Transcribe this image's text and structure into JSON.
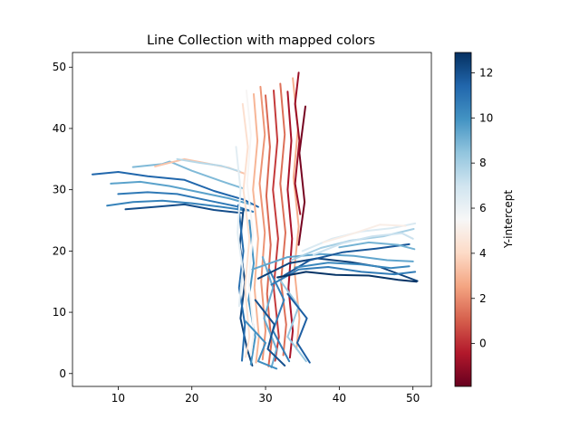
{
  "chart_data": {
    "type": "line",
    "title": "Line Collection with mapped colors",
    "xlabel": "",
    "ylabel": "",
    "xlim": [
      3.8,
      52.5
    ],
    "ylim": [
      -2.1,
      52.4
    ],
    "xticks": [
      10,
      20,
      30,
      40,
      50
    ],
    "yticks": [
      0,
      10,
      20,
      30,
      40,
      50
    ],
    "colorbar": {
      "label": "Y-intercept",
      "range": [
        -1.9,
        12.9
      ],
      "ticks": [
        0,
        2,
        4,
        6,
        8,
        10,
        12
      ],
      "colormap": "RdBu",
      "stops": [
        "#67001f",
        "#b2182b",
        "#d6604d",
        "#f4a582",
        "#fddbc7",
        "#f7f7f7",
        "#d1e5f0",
        "#92c5de",
        "#4393c3",
        "#2166ac",
        "#053061"
      ]
    },
    "series": [
      {
        "values": [
          [
            6.5,
            32.5
          ],
          [
            10,
            32.9
          ],
          [
            14,
            32.2
          ],
          [
            19,
            31.6
          ],
          [
            23,
            29.8
          ],
          [
            27,
            28.4
          ],
          [
            29,
            27.2
          ]
        ],
        "color_value": 11.4
      },
      {
        "values": [
          [
            8.5,
            27.4
          ],
          [
            12,
            28.0
          ],
          [
            16,
            28.2
          ],
          [
            20,
            27.8
          ],
          [
            24,
            27.2
          ],
          [
            27.5,
            26.6
          ]
        ],
        "color_value": 10.5
      },
      {
        "values": [
          [
            9,
            31.0
          ],
          [
            13,
            31.3
          ],
          [
            17,
            30.6
          ],
          [
            21,
            29.6
          ],
          [
            25,
            28.6
          ],
          [
            28,
            27.6
          ]
        ],
        "color_value": 9.5
      },
      {
        "values": [
          [
            10,
            29.3
          ],
          [
            14,
            29.6
          ],
          [
            18,
            29.3
          ],
          [
            22,
            28.3
          ],
          [
            26,
            27.3
          ],
          [
            28.3,
            26.4
          ]
        ],
        "color_value": 10.8
      },
      {
        "values": [
          [
            12,
            33.7
          ],
          [
            16,
            34.2
          ],
          [
            17,
            34.6
          ],
          [
            20,
            33.1
          ],
          [
            24,
            31.4
          ],
          [
            27,
            30.2
          ]
        ],
        "color_value": 8.8
      },
      {
        "values": [
          [
            15,
            33.8
          ],
          [
            19,
            35.0
          ],
          [
            22,
            34.3
          ],
          [
            25,
            33.6
          ],
          [
            27.2,
            32.6
          ]
        ],
        "color_value": 3.4
      },
      {
        "values": [
          [
            18,
            35.0
          ],
          [
            21,
            34.4
          ],
          [
            24,
            33.9
          ],
          [
            26.5,
            33.0
          ]
        ],
        "color_value": 7.6
      },
      {
        "values": [
          [
            11,
            26.8
          ],
          [
            15,
            27.2
          ],
          [
            19,
            27.6
          ],
          [
            23,
            26.7
          ],
          [
            26.8,
            26.2
          ]
        ],
        "color_value": 12.1
      },
      {
        "values": [
          [
            27,
            26.8
          ],
          [
            26.5,
            21.0
          ],
          [
            27.2,
            15.0
          ],
          [
            26.6,
            9.0
          ],
          [
            27.5,
            4.0
          ],
          [
            28.2,
            1.3
          ]
        ],
        "color_value": 12.3
      },
      {
        "values": [
          [
            26.3,
            27.5
          ],
          [
            27.0,
            20.0
          ],
          [
            26.4,
            14.0
          ],
          [
            27.2,
            8.0
          ],
          [
            26.8,
            2.1
          ]
        ],
        "color_value": 11.2
      },
      {
        "values": [
          [
            27.8,
            25.0
          ],
          [
            28.4,
            18.0
          ],
          [
            27.7,
            12.0
          ],
          [
            28.6,
            6.0
          ],
          [
            28.0,
            1.5
          ]
        ],
        "color_value": 9.9
      },
      {
        "values": [
          [
            26.9,
            44.0
          ],
          [
            27.6,
            37.0
          ],
          [
            27.0,
            30.0
          ],
          [
            27.8,
            22.0
          ],
          [
            27.2,
            14.0
          ],
          [
            27.8,
            6.0
          ],
          [
            27.3,
            2.7
          ]
        ],
        "color_value": 4.3
      },
      {
        "values": [
          [
            27.4,
            46.2
          ],
          [
            28.0,
            39.0
          ],
          [
            27.5,
            31.0
          ],
          [
            28.3,
            23.0
          ],
          [
            27.7,
            15.0
          ],
          [
            28.4,
            7.0
          ],
          [
            28.0,
            3.0
          ]
        ],
        "color_value": 5.4
      },
      {
        "values": [
          [
            28.4,
            45.6
          ],
          [
            28.9,
            38.0
          ],
          [
            28.3,
            30.0
          ],
          [
            29.0,
            22.0
          ],
          [
            28.5,
            14.0
          ],
          [
            29.1,
            6.0
          ],
          [
            28.7,
            1.8
          ]
        ],
        "color_value": 3.0
      },
      {
        "values": [
          [
            29.3,
            46.8
          ],
          [
            29.9,
            39.0
          ],
          [
            29.2,
            31.0
          ],
          [
            29.9,
            23.0
          ],
          [
            29.4,
            15.0
          ],
          [
            30.0,
            7.0
          ],
          [
            29.6,
            2.3
          ]
        ],
        "color_value": 2.2
      },
      {
        "values": [
          [
            30.0,
            45.4
          ],
          [
            30.6,
            37.0
          ],
          [
            30.1,
            29.0
          ],
          [
            30.7,
            21.0
          ],
          [
            30.2,
            13.0
          ],
          [
            30.8,
            5.0
          ],
          [
            30.4,
            1.2
          ]
        ],
        "color_value": 1.2
      },
      {
        "values": [
          [
            31.1,
            46.2
          ],
          [
            31.6,
            38.0
          ],
          [
            31.0,
            30.0
          ],
          [
            31.7,
            22.0
          ],
          [
            31.1,
            14.0
          ],
          [
            31.8,
            6.0
          ],
          [
            31.3,
            2.1
          ]
        ],
        "color_value": 0.3
      },
      {
        "values": [
          [
            32.0,
            47.3
          ],
          [
            32.6,
            39.0
          ],
          [
            32.0,
            31.0
          ],
          [
            32.7,
            23.0
          ],
          [
            32.1,
            15.0
          ],
          [
            32.8,
            8.0
          ],
          [
            32.4,
            3.0
          ]
        ],
        "color_value": 1.4
      },
      {
        "values": [
          [
            33.0,
            46.0
          ],
          [
            33.5,
            38.0
          ],
          [
            33.0,
            30.0
          ],
          [
            33.6,
            22.0
          ],
          [
            33.1,
            14.0
          ],
          [
            33.7,
            7.0
          ],
          [
            33.3,
            2.6
          ]
        ],
        "color_value": -0.6
      },
      {
        "values": [
          [
            33.7,
            48.2
          ],
          [
            34.4,
            40.0
          ],
          [
            33.8,
            32.0
          ],
          [
            34.5,
            24.0
          ],
          [
            33.9,
            17.0
          ],
          [
            34.6,
            9.0
          ],
          [
            34.2,
            4.0
          ]
        ],
        "color_value": 2.8
      },
      {
        "values": [
          [
            35.4,
            43.6
          ],
          [
            34.6,
            36.0
          ],
          [
            35.3,
            28.0
          ],
          [
            34.5,
            21.0
          ]
        ],
        "color_value": -1.6
      },
      {
        "values": [
          [
            34.5,
            49.1
          ],
          [
            34.0,
            44.0
          ],
          [
            34.6,
            38.0
          ],
          [
            34.0,
            31.0
          ],
          [
            34.7,
            26.0
          ]
        ],
        "color_value": -0.9
      },
      {
        "values": [
          [
            26.0,
            37.0
          ],
          [
            26.6,
            30.0
          ],
          [
            26.2,
            23.0
          ],
          [
            26.9,
            17.0
          ],
          [
            26.4,
            11.0
          ]
        ],
        "color_value": 6.3
      },
      {
        "values": [
          [
            29.6,
            19.0
          ],
          [
            31.0,
            14.0
          ],
          [
            29.8,
            9.0
          ],
          [
            31.5,
            4.0
          ],
          [
            30.8,
            1.0
          ]
        ],
        "color_value": 9.2
      },
      {
        "values": [
          [
            30.5,
            17.0
          ],
          [
            32.5,
            12.0
          ],
          [
            31.0,
            7.0
          ],
          [
            33.2,
            2.0
          ]
        ],
        "color_value": 10.6
      },
      {
        "values": [
          [
            28.6,
            12.0
          ],
          [
            31.2,
            8.0
          ],
          [
            30.3,
            4.0
          ],
          [
            32.6,
            1.3
          ]
        ],
        "color_value": 12.0
      },
      {
        "values": [
          [
            31.8,
            15.5
          ],
          [
            34.5,
            11.0
          ],
          [
            33.0,
            6.0
          ],
          [
            35.5,
            2.0
          ]
        ],
        "color_value": 8.3
      },
      {
        "values": [
          [
            33.0,
            13.0
          ],
          [
            35.6,
            9.0
          ],
          [
            34.3,
            5.0
          ],
          [
            36.0,
            1.8
          ]
        ],
        "color_value": 11.6
      },
      {
        "values": [
          [
            27.3,
            8.5
          ],
          [
            30.0,
            5.0
          ],
          [
            29.0,
            2.0
          ],
          [
            31.5,
            0.8
          ]
        ],
        "color_value": 10.1
      },
      {
        "values": [
          [
            29.0,
            15.5
          ],
          [
            33.2,
            18.0
          ],
          [
            37.0,
            18.8
          ],
          [
            41.5,
            18.2
          ],
          [
            45.5,
            17.4
          ],
          [
            50.6,
            15.1
          ]
        ],
        "color_value": 12.4
      },
      {
        "values": [
          [
            30.8,
            14.5
          ],
          [
            34.5,
            17.0
          ],
          [
            38.5,
            17.4
          ],
          [
            43.0,
            16.6
          ],
          [
            47.5,
            16.2
          ],
          [
            50.3,
            16.6
          ]
        ],
        "color_value": 10.7
      },
      {
        "values": [
          [
            28.2,
            17.0
          ],
          [
            33.0,
            19.0
          ],
          [
            37.5,
            19.5
          ],
          [
            42.0,
            19.2
          ],
          [
            46.5,
            18.5
          ],
          [
            50.0,
            18.3
          ]
        ],
        "color_value": 9.4
      },
      {
        "values": [
          [
            32.5,
            16.0
          ],
          [
            36.0,
            18.5
          ],
          [
            40.5,
            19.8
          ],
          [
            45.0,
            20.4
          ],
          [
            49.5,
            21.1
          ]
        ],
        "color_value": 11.8
      },
      {
        "values": [
          [
            33.5,
            18.5
          ],
          [
            37.5,
            20.5
          ],
          [
            41.5,
            21.7
          ],
          [
            46.0,
            22.4
          ],
          [
            50.1,
            23.6
          ]
        ],
        "color_value": 8.0
      },
      {
        "values": [
          [
            35.0,
            20.0
          ],
          [
            39.0,
            22.0
          ],
          [
            43.0,
            23.2
          ],
          [
            47.0,
            23.7
          ],
          [
            50.3,
            24.5
          ]
        ],
        "color_value": 6.6
      },
      {
        "values": [
          [
            36.5,
            19.4
          ],
          [
            40.5,
            21.3
          ],
          [
            44.5,
            22.4
          ],
          [
            48.5,
            22.9
          ],
          [
            50.0,
            22.0
          ]
        ],
        "color_value": 7.1
      },
      {
        "values": [
          [
            37.8,
            21.4
          ],
          [
            41.5,
            22.7
          ],
          [
            45.5,
            24.3
          ],
          [
            49.0,
            24.1
          ]
        ],
        "color_value": 5.0
      },
      {
        "values": [
          [
            31.6,
            15.7
          ],
          [
            35.5,
            16.6
          ],
          [
            39.5,
            16.1
          ],
          [
            44.0,
            16.0
          ],
          [
            48.0,
            15.3
          ],
          [
            50.5,
            15.0
          ]
        ],
        "color_value": 12.8
      },
      {
        "values": [
          [
            34.0,
            17.3
          ],
          [
            38.5,
            18.1
          ],
          [
            43.0,
            17.8
          ],
          [
            47.0,
            17.2
          ],
          [
            49.5,
            17.5
          ]
        ],
        "color_value": 10.3
      },
      {
        "values": [
          [
            40.0,
            20.6
          ],
          [
            44.0,
            21.4
          ],
          [
            48.0,
            21.0
          ],
          [
            50.2,
            20.3
          ]
        ],
        "color_value": 9.0
      }
    ]
  }
}
